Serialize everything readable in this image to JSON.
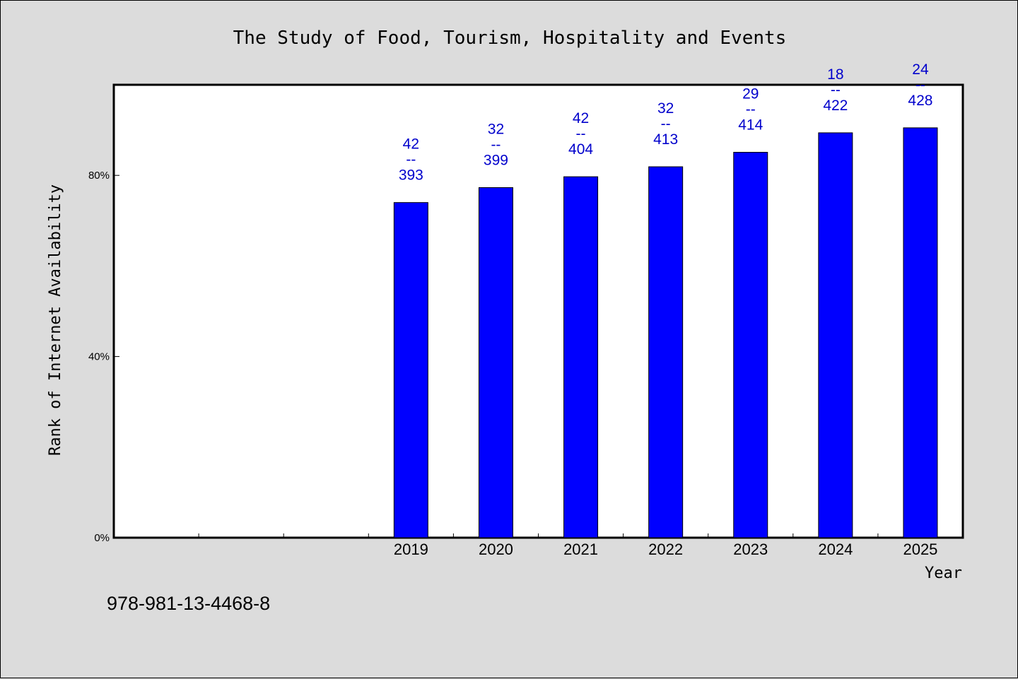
{
  "chart_data": {
    "type": "bar",
    "title": "The Study of Food, Tourism, Hospitality and Events",
    "xlabel": "Year",
    "ylabel": "Rank of Internet Availability",
    "categories": [
      "2019",
      "2020",
      "2021",
      "2022",
      "2023",
      "2024",
      "2025"
    ],
    "values": [
      74,
      77.3,
      79.7,
      81.9,
      85.1,
      89.4,
      90.5
    ],
    "data_labels": [
      {
        "top": "42",
        "sep": "--",
        "bottom": "393"
      },
      {
        "top": "32",
        "sep": "--",
        "bottom": "399"
      },
      {
        "top": "42",
        "sep": "--",
        "bottom": "404"
      },
      {
        "top": "32",
        "sep": "--",
        "bottom": "413"
      },
      {
        "top": "29",
        "sep": "--",
        "bottom": "414"
      },
      {
        "top": "18",
        "sep": "--",
        "bottom": "422"
      },
      {
        "top": "24",
        "sep": "--",
        "bottom": "428"
      }
    ],
    "yticks": [
      0,
      40,
      80
    ],
    "ytick_labels": [
      "0%",
      "40%",
      "80%"
    ],
    "ylim": [
      0,
      100
    ],
    "x_slots": 10,
    "first_category_slot": 3,
    "bar_color": "#0000ff",
    "label_color": "#0000cc",
    "grid": false
  },
  "footer": {
    "isbn": "978-981-13-4468-8"
  }
}
